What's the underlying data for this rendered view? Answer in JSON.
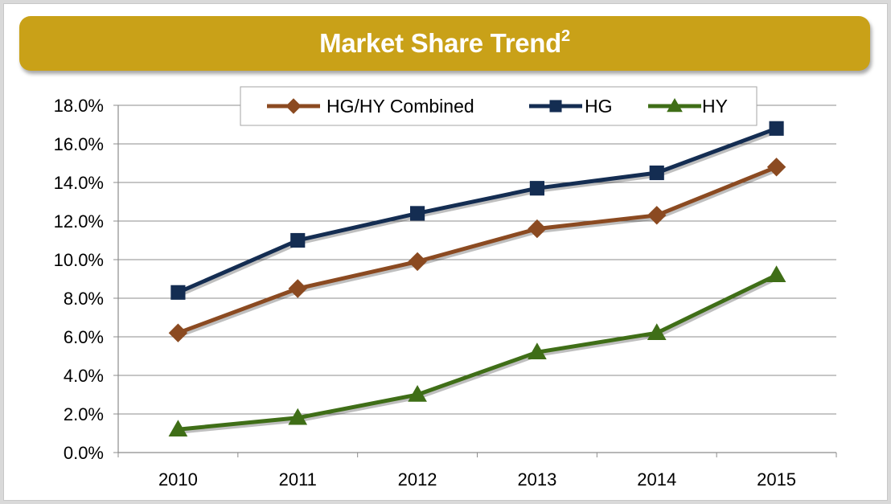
{
  "header": {
    "title": "Market Share Trend",
    "title_superscript": "2",
    "color": "#c9a118"
  },
  "chart_data": {
    "type": "line",
    "title": "Market Share Trend",
    "categories": [
      "2010",
      "2011",
      "2012",
      "2013",
      "2014",
      "2015"
    ],
    "ylim": [
      0,
      18
    ],
    "yticks": [
      "0.0%",
      "2.0%",
      "4.0%",
      "6.0%",
      "8.0%",
      "10.0%",
      "12.0%",
      "14.0%",
      "16.0%",
      "18.0%"
    ],
    "grid": true,
    "legend_position": "top",
    "series": [
      {
        "name": "HG/HY Combined",
        "values": [
          6.2,
          8.5,
          9.9,
          11.6,
          12.3,
          14.8
        ],
        "color": "#8b4a21",
        "marker": "diamond"
      },
      {
        "name": "HG",
        "values": [
          8.3,
          11.0,
          12.4,
          13.7,
          14.5,
          16.8
        ],
        "color": "#142d52",
        "marker": "square"
      },
      {
        "name": "HY",
        "values": [
          1.2,
          1.8,
          3.0,
          5.2,
          6.2,
          9.2
        ],
        "color": "#3f6e17",
        "marker": "triangle"
      }
    ]
  }
}
